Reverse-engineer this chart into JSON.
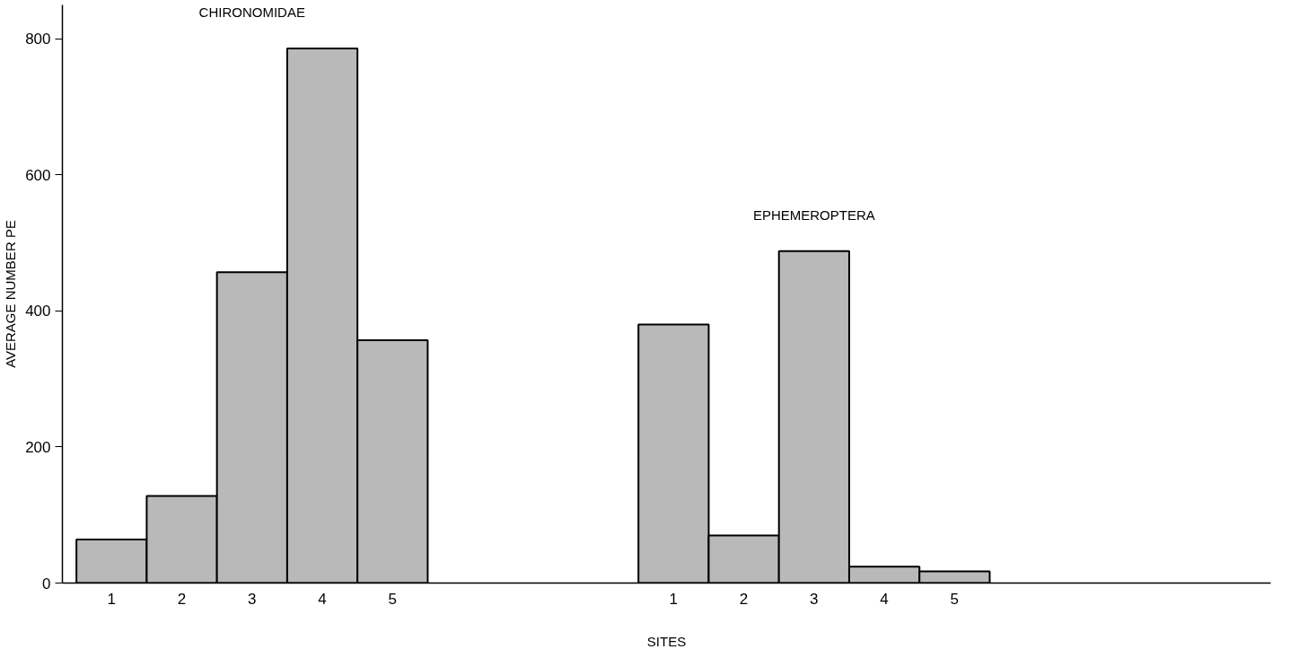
{
  "chart_data": {
    "type": "bar",
    "xlabel": "SITES",
    "ylabel": "AVERAGE NUMBER PE",
    "categories": [
      "1",
      "2",
      "3",
      "4",
      "5",
      null,
      null,
      null,
      "1",
      "2",
      "3",
      "4",
      "5",
      null,
      null,
      null,
      null
    ],
    "series": [
      {
        "name": "CHIRONOMIDAE",
        "color": "#b9b9b9",
        "values": [
          64,
          128,
          457,
          786,
          357,
          null,
          null,
          null,
          null,
          null,
          null,
          null,
          null,
          null,
          null,
          null,
          null
        ]
      },
      {
        "name": "EPHEMEROPTERA",
        "color": "#b9b9b9",
        "values": [
          null,
          null,
          null,
          null,
          null,
          null,
          null,
          null,
          380,
          70,
          488,
          24,
          17,
          null,
          null,
          null,
          null
        ]
      }
    ],
    "ylim": [
      0,
      850
    ],
    "yticks": [
      0,
      200,
      400,
      600,
      800
    ],
    "grid": false
  }
}
